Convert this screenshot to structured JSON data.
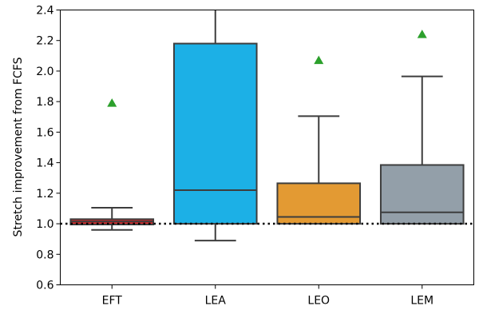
{
  "chart_data": {
    "type": "box",
    "title": "",
    "xlabel": "",
    "ylabel": "Stretch improvement from FCFS",
    "ylim": [
      0.6,
      2.4
    ],
    "yticks": [
      "0.6",
      "0.8",
      "1.0",
      "1.2",
      "1.4",
      "1.6",
      "1.8",
      "2.0",
      "2.2",
      "2.4"
    ],
    "reference_line": {
      "y": 1.0,
      "style": "dotted"
    },
    "grid": false,
    "categories": [
      "EFT",
      "LEA",
      "LEO",
      "LEM"
    ],
    "boxes": [
      {
        "label": "EFT",
        "color": "#d62728",
        "whisker_low": 0.96,
        "q1": 0.995,
        "median": 1.015,
        "q3": 1.03,
        "whisker_high": 1.105,
        "mean": 1.79
      },
      {
        "label": "LEA",
        "color": "#1cb0e6",
        "whisker_low": 0.89,
        "q1": 1.0,
        "median": 1.22,
        "q3": 2.18,
        "whisker_high": 2.4,
        "mean": null
      },
      {
        "label": "LEO",
        "color": "#e39a33",
        "whisker_low": 1.0,
        "q1": 1.0,
        "median": 1.045,
        "q3": 1.265,
        "whisker_high": 1.705,
        "mean": 2.07
      },
      {
        "label": "LEM",
        "color": "#939fa9",
        "whisker_low": 1.0,
        "q1": 1.0,
        "median": 1.075,
        "q3": 1.385,
        "whisker_high": 1.965,
        "mean": 2.24
      }
    ],
    "mean_marker_color": "#2ca02c"
  }
}
